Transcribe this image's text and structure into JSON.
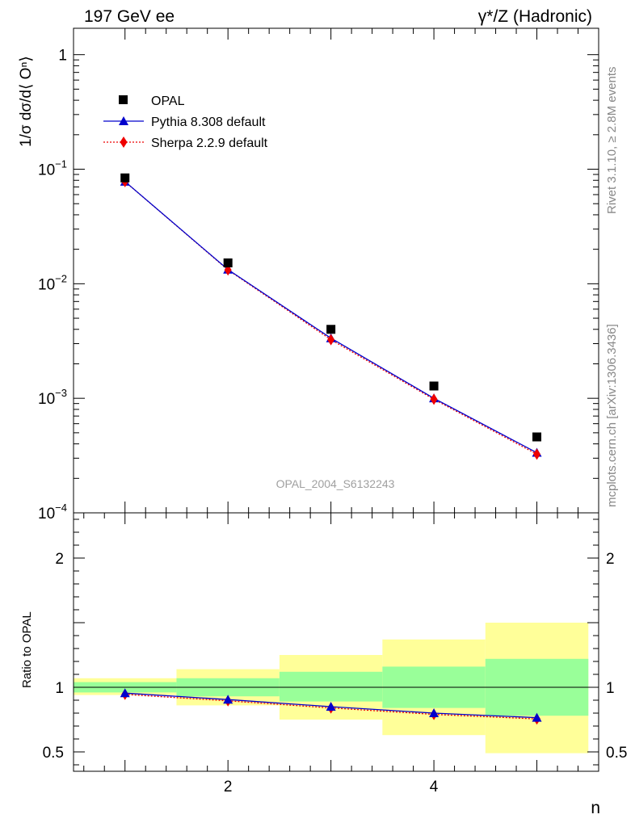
{
  "header": {
    "left_title": "197 GeV ee",
    "right_title": "γ*/Z (Hadronic)"
  },
  "side_labels": {
    "rivet": "Rivet 3.1.10, ≥ 2.8M events",
    "mcplots": "mcplots.cern.ch [arXiv:1306.3436]"
  },
  "watermark": "OPAL_2004_S6132243",
  "chart_data": [
    {
      "type": "scatter",
      "panel": "main",
      "ylabel": "1/σ dσ/d⟨ Oⁿ⟩",
      "yscale": "log",
      "ylim": [
        0.0001,
        1.7
      ],
      "xlim": [
        0.5,
        5.6
      ],
      "yticks": [
        {
          "value": 1,
          "base": "1",
          "exp": ""
        },
        {
          "value": 0.1,
          "base": "10",
          "exp": "−1"
        },
        {
          "value": 0.01,
          "base": "10",
          "exp": "−2"
        },
        {
          "value": 0.001,
          "base": "10",
          "exp": "−3"
        },
        {
          "value": 0.0001,
          "base": "10",
          "exp": "−4"
        }
      ],
      "legend_position": "top-left",
      "x": [
        1,
        2,
        3,
        4,
        5
      ],
      "series": [
        {
          "name": "OPAL",
          "style": "square-marker",
          "color": "#000000",
          "values": [
            0.084,
            0.0152,
            0.004,
            0.00128,
            0.00046
          ]
        },
        {
          "name": "Pythia 8.308 default",
          "style": "solid-line-triangle",
          "color": "#0000cc",
          "values": [
            0.078,
            0.0133,
            0.00335,
            0.001,
            0.000335
          ]
        },
        {
          "name": "Sherpa 2.2.9 default",
          "style": "dotted-line-diamond",
          "color": "#ee0000",
          "values": [
            0.078,
            0.0132,
            0.00325,
            0.00098,
            0.000325
          ]
        }
      ]
    },
    {
      "type": "line",
      "panel": "ratio",
      "ylabel": "Ratio to OPAL",
      "ylim": [
        0.35,
        2.35
      ],
      "xlim": [
        0.5,
        5.6
      ],
      "xlabel": "n",
      "xticks": [
        {
          "value": 2,
          "label": "2"
        },
        {
          "value": 4,
          "label": "4"
        }
      ],
      "yticks": [
        {
          "value": 2,
          "label": "2"
        },
        {
          "value": 1,
          "label": "1"
        },
        {
          "value": 0.5,
          "label": "0.5"
        }
      ],
      "bands": [
        {
          "x": [
            0.5,
            1.5
          ],
          "stat": [
            0.96,
            1.04
          ],
          "total": [
            0.94,
            1.07
          ]
        },
        {
          "x": [
            1.5,
            2.5
          ],
          "stat": [
            0.93,
            1.07
          ],
          "total": [
            0.86,
            1.14
          ]
        },
        {
          "x": [
            2.5,
            3.5
          ],
          "stat": [
            0.89,
            1.12
          ],
          "total": [
            0.75,
            1.25
          ]
        },
        {
          "x": [
            3.5,
            4.5
          ],
          "stat": [
            0.84,
            1.16
          ],
          "total": [
            0.63,
            1.37
          ]
        },
        {
          "x": [
            4.5,
            5.5
          ],
          "stat": [
            0.78,
            1.22
          ],
          "total": [
            0.49,
            1.5
          ]
        }
      ],
      "band_colors": {
        "stat": "#99ff99",
        "total": "#ffff99"
      },
      "x": [
        1,
        2,
        3,
        4,
        5
      ],
      "series": [
        {
          "name": "Pythia 8.308 default",
          "color": "#0000cc",
          "values": [
            0.955,
            0.905,
            0.85,
            0.8,
            0.765
          ]
        },
        {
          "name": "Sherpa 2.2.9 default",
          "color": "#ee0000",
          "values": [
            0.945,
            0.895,
            0.84,
            0.79,
            0.755
          ]
        }
      ]
    }
  ]
}
